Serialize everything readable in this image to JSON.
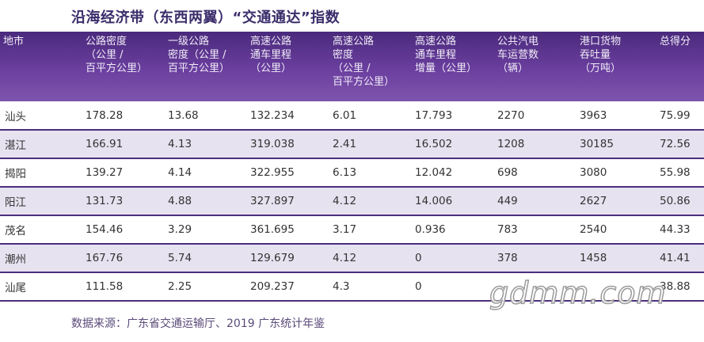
{
  "title": "沿海经济带（东西两翼）“交通通达”指数",
  "table": {
    "headers": [
      "地市",
      "公路密度\n（公里 /\n百平方公里）",
      "一级公路\n密度（公里 /\n百平方公里）",
      "高速公路\n通车里程\n（公里）",
      "高速公路\n密度\n（公里 /\n百平方公里）",
      "高速公路\n通车里程\n增量（公里）",
      "公共汽电\n车运营数\n（辆）",
      "港口货物\n吞吐量\n（万吨）",
      "总得分"
    ],
    "rows": [
      [
        "汕头",
        "178.28",
        "13.68",
        "132.234",
        "6.01",
        "17.793",
        "2270",
        "3963",
        "75.99"
      ],
      [
        "湛江",
        "166.91",
        "4.13",
        "319.038",
        "2.41",
        "16.502",
        "1208",
        "30185",
        "72.56"
      ],
      [
        "揭阳",
        "139.27",
        "4.14",
        "322.955",
        "6.13",
        "12.042",
        "698",
        "3080",
        "55.98"
      ],
      [
        "阳江",
        "131.73",
        "4.88",
        "327.897",
        "4.12",
        "14.006",
        "449",
        "2627",
        "50.86"
      ],
      [
        "茂名",
        "154.46",
        "3.29",
        "361.695",
        "3.17",
        "0.936",
        "783",
        "2540",
        "44.33"
      ],
      [
        "潮州",
        "167.76",
        "5.74",
        "129.679",
        "4.12",
        "0",
        "378",
        "1458",
        "41.41"
      ],
      [
        "汕尾",
        "111.58",
        "2.25",
        "209.237",
        "4.3",
        "0",
        "",
        "",
        "38.88"
      ]
    ]
  },
  "source": "数据来源：广东省交通运输厅、2019 广东统计年鉴",
  "watermark": "gdmm.com",
  "colors": {
    "header_bg": "#5b3590",
    "row_alt_bg": "#e7e2f0",
    "divider": "#4b2f7e"
  }
}
